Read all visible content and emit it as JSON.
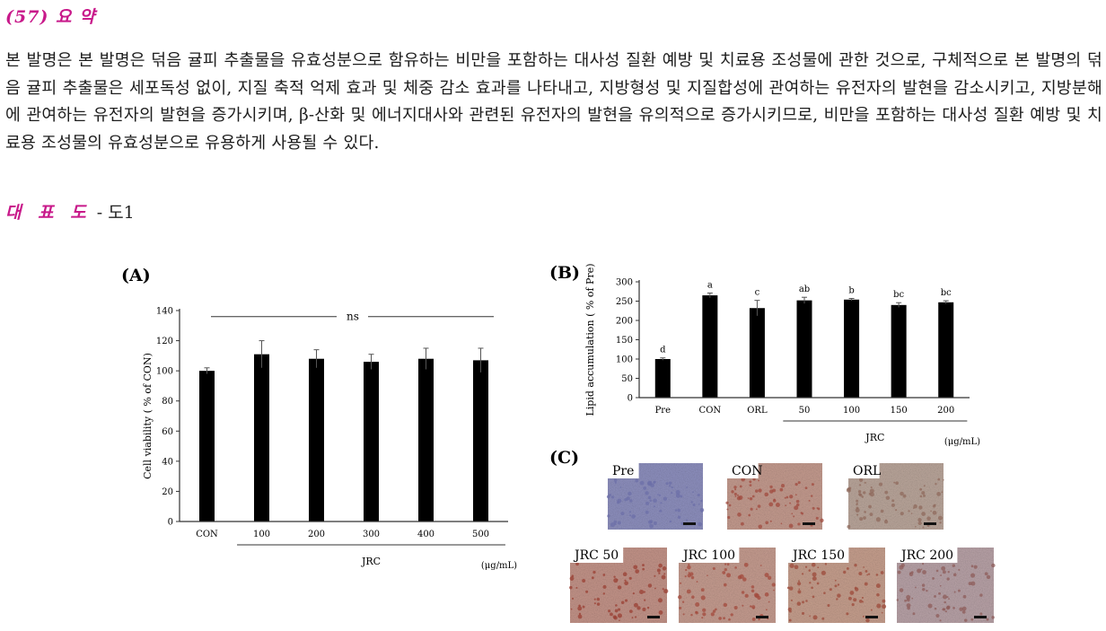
{
  "heading": "(57) 요 약",
  "abstract": "본 발명은 본 발명은 덖음 귤피 추출물을 유효성분으로 함유하는 비만을 포함하는 대사성 질환 예방 및 치료용 조성물에 관한 것으로, 구체적으로 본 발명의 덖음 귤피 추출물은 세포독성 없이, 지질 축적 억제 효과 및 체중 감소 효과를 나타내고, 지방형성 및 지질합성에 관여하는 유전자의 발현을 감소시키고, 지방분해에 관여하는 유전자의 발현을 증가시키며, β-산화 및 에너지대사와 관련된 유전자의 발현을 유의적으로 증가시키므로, 비만을 포함하는 대사성 질환 예방 및 치료용 조성물의 유효성분으로 유용하게 사용될 수 있다.",
  "representative": {
    "label": "대 표 도",
    "separator": "-",
    "value": "도1"
  },
  "panel_c": {
    "label": "(C)",
    "images": [
      {
        "label": "Pre",
        "base": "#8d8fbd",
        "spot": "#6c6fa8"
      },
      {
        "label": "CON",
        "base": "#c39a8e",
        "spot": "#a04a3e"
      },
      {
        "label": "ORL",
        "base": "#b9a59a",
        "spot": "#8f6a5c"
      },
      {
        "label": "JRC 50",
        "base": "#c29388",
        "spot": "#9a3f33"
      },
      {
        "label": "JRC 100",
        "base": "#c49b8f",
        "spot": "#a3493c"
      },
      {
        "label": "JRC 150",
        "base": "#c59e8d",
        "spot": "#9c4a39"
      },
      {
        "label": "JRC 200",
        "base": "#b7a1a6",
        "spot": "#8e5c5a"
      }
    ]
  },
  "chart_data": [
    {
      "type": "bar",
      "panel": "(A)",
      "categories": [
        "CON",
        "100",
        "200",
        "300",
        "400",
        "500"
      ],
      "values": [
        100,
        111,
        108,
        106,
        108,
        107
      ],
      "errors": [
        2,
        9,
        6,
        5,
        7,
        8
      ],
      "ylabel": "Cell viability ( % of CON)",
      "ylim": [
        0,
        140
      ],
      "yticks": [
        "0",
        "20",
        "40",
        "60",
        "80",
        "100",
        "120",
        "140"
      ],
      "group_label": "JRC",
      "unit": "(μg/mL)",
      "annotation": "ns",
      "grid": false
    },
    {
      "type": "bar",
      "panel": "(B)",
      "categories": [
        "Pre",
        "CON",
        "ORL",
        "50",
        "100",
        "150",
        "200"
      ],
      "values": [
        100,
        265,
        232,
        252,
        254,
        240,
        247
      ],
      "errors": [
        3,
        6,
        20,
        8,
        3,
        6,
        4
      ],
      "significance": [
        "d",
        "a",
        "c",
        "ab",
        "b",
        "bc",
        "bc"
      ],
      "ylabel": "Lipid accumulation ( % of Pre)",
      "ylim": [
        0,
        300
      ],
      "yticks": [
        "0",
        "50",
        "100",
        "150",
        "200",
        "250",
        "300"
      ],
      "group_label": "JRC",
      "unit": "(μg/mL)",
      "grid": false
    }
  ]
}
